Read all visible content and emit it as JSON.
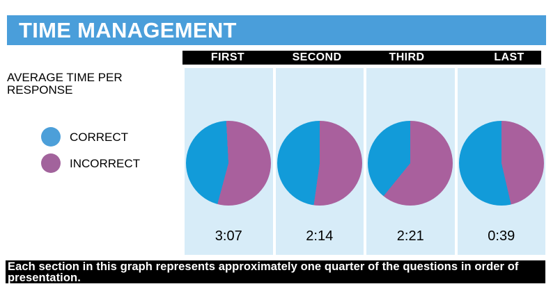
{
  "chart_data": {
    "type": "pie",
    "title": "TIME MANAGEMENT",
    "subtitle": "AVERAGE TIME PER RESPONSE",
    "legend": [
      {
        "label": "CORRECT",
        "swatch_color": "#4C9FD9",
        "pie_color": "#129BD9"
      },
      {
        "label": "INCORRECT",
        "swatch_color": "#A2639C",
        "pie_color": "#A9609D"
      }
    ],
    "sections": [
      {
        "label": "FIRST",
        "avg_time": "3:07",
        "correct_pct": 46,
        "incorrect_pct": 54,
        "incorrect_start_deg": -3,
        "incorrect_end_deg": 195
      },
      {
        "label": "SECOND",
        "avg_time": "2:14",
        "correct_pct": 48,
        "incorrect_pct": 52,
        "incorrect_start_deg": 0,
        "incorrect_end_deg": 188
      },
      {
        "label": "THIRD",
        "avg_time": "2:21",
        "correct_pct": 39,
        "incorrect_pct": 61,
        "incorrect_start_deg": 0,
        "incorrect_end_deg": 219
      },
      {
        "label": "LAST",
        "avg_time": "0:39",
        "correct_pct": 54,
        "incorrect_pct": 46,
        "incorrect_start_deg": 0,
        "incorrect_end_deg": 167
      }
    ],
    "note": "Each section in this graph represents approximately one quarter of the questions in order of presentation.",
    "layout": {
      "title_bar_color": "#4A9EDA",
      "column_bg_color": "#D7ECF8",
      "label_bar_color": "#000000",
      "legend_position": "left"
    }
  }
}
